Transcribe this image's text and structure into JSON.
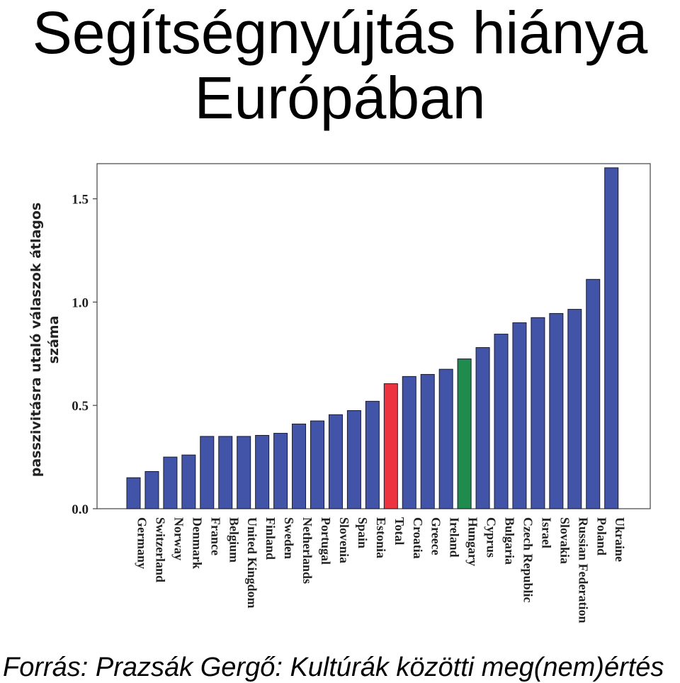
{
  "page": {
    "title_line1": "Segítségnyújtás hiánya",
    "title_line2": "Európában",
    "source": "Forrás: Prazsák Gergő: Kultúrák közötti meg(nem)értés"
  },
  "chart_data": {
    "type": "bar",
    "title": "",
    "xlabel": "",
    "ylabel": "passzivitásra utaló válaszok átlagos száma",
    "ylabel_lines": [
      "passzivitásra utaló válaszok átlagos",
      "száma"
    ],
    "ylim": [
      0,
      1.67
    ],
    "yticks": [
      0.0,
      0.5,
      1.0,
      1.5
    ],
    "ytick_labels": [
      "0.0",
      "0.5",
      "1.0",
      "1.5"
    ],
    "grid": false,
    "legend": "none",
    "categories": [
      "Germany",
      "Switzerland",
      "Norway",
      "Denmark",
      "France",
      "Belgium",
      "United Kingdom",
      "Finland",
      "Sweden",
      "Netherlands",
      "Portugal",
      "Slovenia",
      "Spain",
      "Estonia",
      "Total",
      "Croatia",
      "Greece",
      "Ireland",
      "Hungary",
      "Cyprus",
      "Bulgaria",
      "Czech Republic",
      "Israel",
      "Slovakia",
      "Russian Federation",
      "Poland",
      "Ukraine"
    ],
    "values": [
      0.15,
      0.18,
      0.25,
      0.26,
      0.35,
      0.35,
      0.35,
      0.355,
      0.365,
      0.41,
      0.425,
      0.455,
      0.475,
      0.52,
      0.605,
      0.64,
      0.65,
      0.675,
      0.725,
      0.78,
      0.845,
      0.9,
      0.925,
      0.945,
      0.965,
      1.11,
      1.65
    ],
    "bar_colors": [
      "#4254a8",
      "#4254a8",
      "#4254a8",
      "#4254a8",
      "#4254a8",
      "#4254a8",
      "#4254a8",
      "#4254a8",
      "#4254a8",
      "#4254a8",
      "#4254a8",
      "#4254a8",
      "#4254a8",
      "#4254a8",
      "#ee3340",
      "#4254a8",
      "#4254a8",
      "#4254a8",
      "#1f8b4c",
      "#4254a8",
      "#4254a8",
      "#4254a8",
      "#4254a8",
      "#4254a8",
      "#4254a8",
      "#4254a8",
      "#4254a8"
    ],
    "bar_edge_color": "#1a1a2e"
  }
}
